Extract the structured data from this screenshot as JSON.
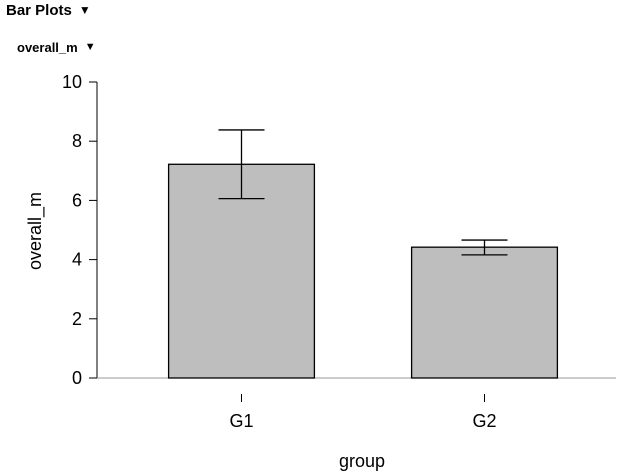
{
  "header": {
    "title": "Bar Plots",
    "toggle_icon": "caret-down-icon"
  },
  "subheader": {
    "title": "overall_m",
    "toggle_icon": "caret-down-icon"
  },
  "chart_data": {
    "type": "bar",
    "title": "",
    "xlabel": "group",
    "ylabel": "overall_m",
    "categories": [
      "G1",
      "G2"
    ],
    "values": [
      7.22,
      4.42
    ],
    "error_low": [
      6.06,
      4.16
    ],
    "error_high": [
      8.38,
      4.66
    ],
    "ylim": [
      0,
      10
    ],
    "yticks": [
      0,
      2,
      4,
      6,
      8,
      10
    ],
    "grid": false,
    "bar_color": "#bebebe",
    "bar_edge_color": "#000000"
  }
}
